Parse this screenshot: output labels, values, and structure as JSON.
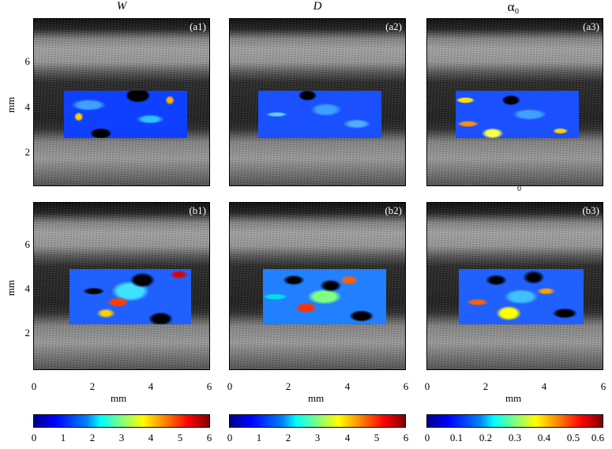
{
  "column_titles": [
    "W",
    "D",
    "α₀"
  ],
  "panels": [
    {
      "label": "(a1)"
    },
    {
      "label": "(a2)"
    },
    {
      "label": "(a3)"
    },
    {
      "label": "(b1)"
    },
    {
      "label": "(b2)"
    },
    {
      "label": "(b3)"
    }
  ],
  "y_axis": {
    "unit": "mm",
    "ticks": [
      "6",
      "4",
      "2"
    ]
  },
  "x_axis": {
    "unit": "mm",
    "ticks": [
      "0",
      "2",
      "4",
      "6"
    ]
  },
  "stray_mark": "0",
  "colorbars": [
    {
      "ticks": [
        "0",
        "1",
        "2",
        "3",
        "4",
        "5",
        "6"
      ]
    },
    {
      "ticks": [
        "0",
        "1",
        "2",
        "3",
        "4",
        "5",
        "6"
      ]
    },
    {
      "ticks": [
        "0",
        "0.1",
        "0.2",
        "0.3",
        "0.4",
        "0.5",
        "0.6"
      ]
    }
  ],
  "colormap": [
    "#00008f",
    "#0000ff",
    "#0080ff",
    "#00ffff",
    "#80ff80",
    "#ffff00",
    "#ff8000",
    "#ff0000",
    "#800000"
  ]
}
